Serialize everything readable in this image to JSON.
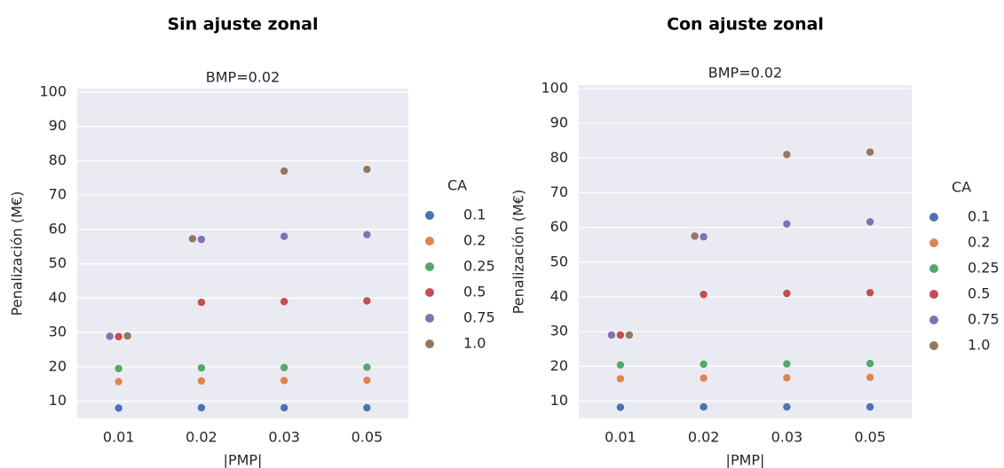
{
  "chart_data": [
    {
      "type": "strip",
      "title": "Sin ajuste zonal",
      "subtitle": "BMP=0.02",
      "x_label": "|PMP|",
      "y_label": "Penalización (M€)",
      "categories": [
        "0.01",
        "0.02",
        "0.03",
        "0.05"
      ],
      "legend_title": "CA",
      "legend": "right-outside",
      "series": [
        {
          "name": "0.1",
          "color": "#4c72b0",
          "values": [
            8.0,
            8.1,
            8.1,
            8.1
          ]
        },
        {
          "name": "0.2",
          "color": "#dd8452",
          "values": [
            15.7,
            15.9,
            16.0,
            16.1
          ]
        },
        {
          "name": "0.25",
          "color": "#55a868",
          "values": [
            19.5,
            19.7,
            19.8,
            19.9
          ]
        },
        {
          "name": "0.5",
          "color": "#c44e52",
          "values": [
            28.8,
            38.8,
            39.0,
            39.2
          ]
        },
        {
          "name": "0.75",
          "color": "#8172b3",
          "values": [
            28.9,
            57.1,
            58.0,
            58.5
          ]
        },
        {
          "name": "1.0",
          "color": "#937860",
          "values": [
            29.0,
            57.3,
            77.0,
            77.5
          ]
        }
      ],
      "ylim": [
        5,
        101
      ],
      "yticks": [
        10,
        20,
        30,
        40,
        50,
        60,
        70,
        80,
        90,
        100
      ],
      "grid": true
    },
    {
      "type": "strip",
      "title": "Con ajuste zonal",
      "subtitle": "BMP=0.02",
      "x_label": "|PMP|",
      "y_label": "Penalización (M€)",
      "categories": [
        "0.01",
        "0.02",
        "0.03",
        "0.05"
      ],
      "legend_title": "CA",
      "legend": "right-outside",
      "series": [
        {
          "name": "0.1",
          "color": "#4c72b0",
          "values": [
            8.2,
            8.3,
            8.3,
            8.3
          ]
        },
        {
          "name": "0.2",
          "color": "#dd8452",
          "values": [
            16.4,
            16.6,
            16.7,
            16.8
          ]
        },
        {
          "name": "0.25",
          "color": "#55a868",
          "values": [
            20.4,
            20.6,
            20.7,
            20.8
          ]
        },
        {
          "name": "0.5",
          "color": "#c44e52",
          "values": [
            29.0,
            40.7,
            41.0,
            41.2
          ]
        },
        {
          "name": "0.75",
          "color": "#8172b3",
          "values": [
            29.0,
            57.3,
            61.0,
            61.6
          ]
        },
        {
          "name": "1.0",
          "color": "#937860",
          "values": [
            29.0,
            57.5,
            81.0,
            81.7
          ]
        }
      ],
      "ylim": [
        5,
        101
      ],
      "yticks": [
        10,
        20,
        30,
        40,
        50,
        60,
        70,
        80,
        90,
        100
      ],
      "grid": true
    }
  ]
}
